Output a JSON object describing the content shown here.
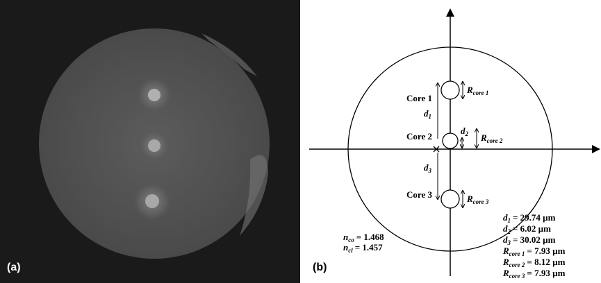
{
  "panels": {
    "a": {
      "label": "(a)"
    },
    "b": {
      "label": "(b)"
    }
  },
  "cores": [
    {
      "label": "Core 1",
      "radius": {
        "base": "R",
        "sub": "core 1"
      }
    },
    {
      "label": "Core 2",
      "radius": {
        "base": "R",
        "sub": "core 2"
      }
    },
    {
      "label": "Core 3",
      "radius": {
        "base": "R",
        "sub": "core 3"
      }
    }
  ],
  "distances": [
    {
      "base": "d",
      "sub": "1"
    },
    {
      "base": "d",
      "sub": "2"
    },
    {
      "base": "d",
      "sub": "3"
    }
  ],
  "indices": [
    {
      "base": "n",
      "sub": "co",
      "value": "= 1.468"
    },
    {
      "base": "n",
      "sub": "cl",
      "value": "= 1.457"
    }
  ],
  "parameters": [
    {
      "base": "d",
      "sub": "1",
      "value": "= 29.74 µm"
    },
    {
      "base": "d",
      "sub": "2",
      "value": "= 6.02 µm"
    },
    {
      "base": "d",
      "sub": "3",
      "value": "= 30.02 µm"
    },
    {
      "base": "R",
      "sub": "core 1",
      "value": "= 7.93 µm"
    },
    {
      "base": "R",
      "sub": "core 2",
      "value": "= 8.12 µm"
    },
    {
      "base": "R",
      "sub": "core 3",
      "value": "= 7.93 µm"
    }
  ]
}
